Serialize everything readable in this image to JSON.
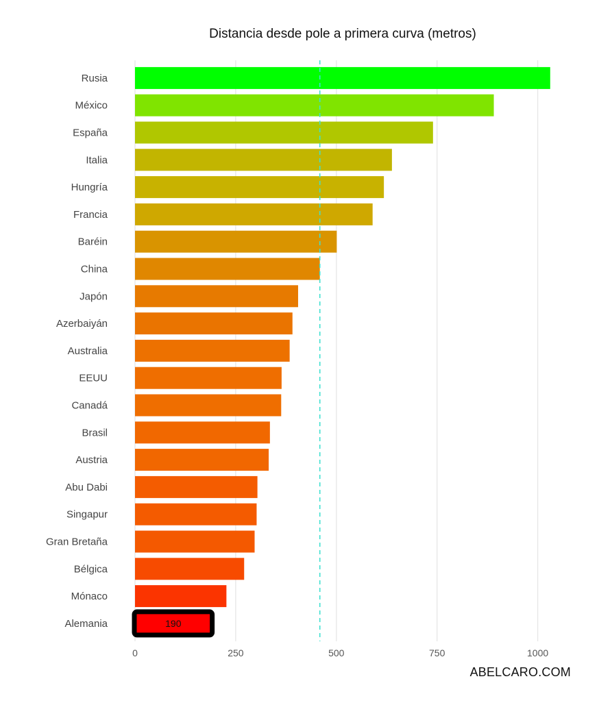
{
  "chart_data": {
    "type": "bar",
    "orientation": "horizontal",
    "title": "Distancia desde pole a primera curva (metros)",
    "xlabel": "",
    "ylabel": "",
    "categories": [
      "Rusia",
      "México",
      "España",
      "Italia",
      "Hungría",
      "Francia",
      "Baréin",
      "China",
      "Japón",
      "Azerbaiyán",
      "Australia",
      "EEUU",
      "Canadá",
      "Brasil",
      "Austria",
      "Abu Dabi",
      "Singapur",
      "Gran Bretaña",
      "Bélgica",
      "Mónaco",
      "Alemania"
    ],
    "values": [
      1031,
      891,
      740,
      638,
      618,
      590,
      501,
      459,
      405,
      391,
      384,
      364,
      363,
      335,
      332,
      304,
      302,
      297,
      271,
      227,
      190
    ],
    "colors": [
      "#00ff00",
      "#80e400",
      "#b0c700",
      "#c2b500",
      "#c8b200",
      "#cfa800",
      "#d99400",
      "#e08700",
      "#e77a00",
      "#ea7400",
      "#ed7100",
      "#ef6e00",
      "#ef6e00",
      "#f16800",
      "#f16700",
      "#f45c00",
      "#f45b00",
      "#f45900",
      "#f74b00",
      "#fb3400",
      "#ff0000"
    ],
    "highlight": {
      "category": "Alemania",
      "value_label": "190",
      "border_color": "#000000"
    },
    "reference_line": {
      "value": 459,
      "style": "dashed",
      "color": "#40e0d0"
    },
    "xlim": [
      0,
      1050
    ],
    "x_ticks": [
      0,
      250,
      500,
      750,
      1000
    ],
    "x_tick_labels": [
      "0",
      "250",
      "500",
      "750",
      "1000"
    ],
    "grid": "vertical-major",
    "legend": "none"
  },
  "credit": "ABELCARO.COM"
}
